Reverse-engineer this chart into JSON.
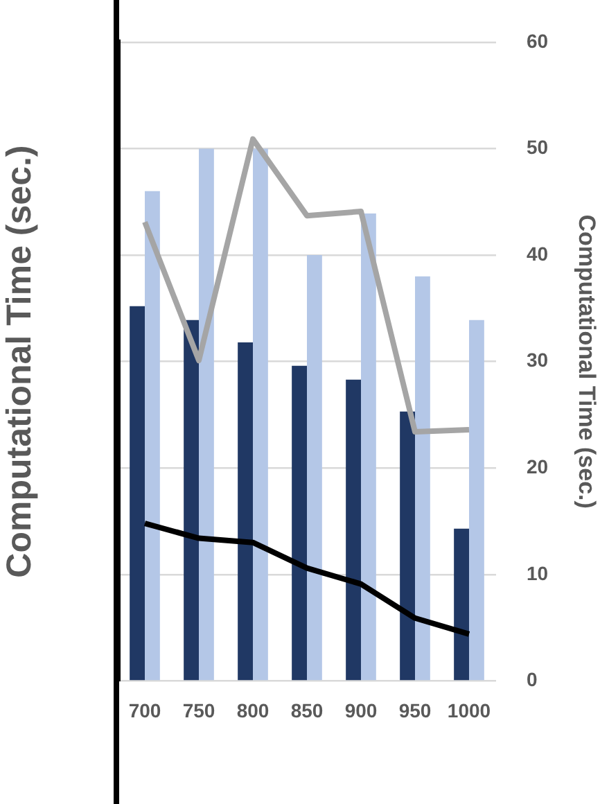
{
  "chart_data": {
    "type": "bar",
    "ylabel": "Computational Time (sec.)",
    "y2label": "Computational Time (sec.)",
    "categories": [
      "700",
      "750",
      "800",
      "850",
      "900",
      "950",
      "1000"
    ],
    "series": [
      {
        "color": "#203864",
        "axis": "y2",
        "values": [
          35.2,
          33.9,
          31.8,
          29.6,
          28.3,
          25.3,
          14.3
        ]
      },
      {
        "color": "#b4c7e7",
        "axis": "y2",
        "values": [
          46.0,
          50.0,
          50.0,
          40.0,
          43.9,
          38.0,
          33.9
        ]
      },
      {
        "type": "line",
        "color": "#a5a5a5",
        "axis": "y2",
        "values": [
          43.1,
          30.1,
          50.9,
          43.7,
          44.1,
          23.4,
          23.6
        ]
      },
      {
        "type": "line",
        "color": "#000000",
        "axis": "y2",
        "values": [
          14.8,
          13.4,
          13.0,
          10.6,
          9.1,
          5.9,
          4.4
        ]
      }
    ],
    "y2lim": [
      0,
      60
    ],
    "y2ticks": [
      0,
      10,
      20,
      30,
      40,
      50,
      60
    ],
    "grid": "y",
    "legend": false,
    "marker": "none",
    "line_style": "solid"
  }
}
